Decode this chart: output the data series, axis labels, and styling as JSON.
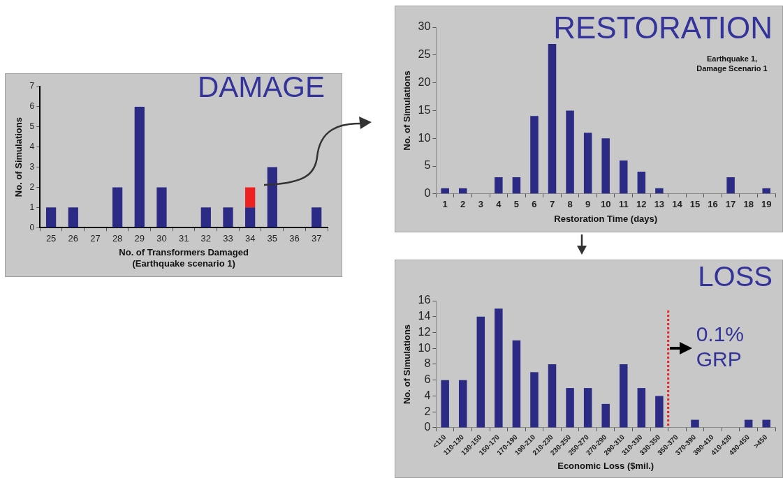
{
  "chart_data": [
    {
      "type": "bar",
      "title": "DAMAGE",
      "xlabel": "No. of Transformers Damaged\n(Earthquake scenario 1)",
      "ylabel": "No. of Simulations",
      "categories": [
        "25",
        "26",
        "27",
        "28",
        "29",
        "30",
        "31",
        "32",
        "33",
        "34",
        "35",
        "36",
        "37"
      ],
      "stacked": true,
      "series": [
        {
          "color": "#2b2b85",
          "values": [
            1,
            1,
            0,
            2,
            6,
            2,
            0,
            1,
            1,
            1,
            3,
            0,
            1
          ]
        },
        {
          "color": "#ee2020",
          "values": [
            null,
            null,
            null,
            null,
            null,
            null,
            null,
            null,
            null,
            1,
            null,
            null,
            null
          ]
        }
      ],
      "ylim": [
        0,
        7
      ],
      "yticks": [
        0,
        1,
        2,
        3,
        4,
        5,
        6,
        7
      ],
      "grid": false,
      "legend": false
    },
    {
      "type": "bar",
      "title": "RESTORATION",
      "xlabel": "Restoration Time (days)",
      "ylabel": "No. of Simulations",
      "annotations": [
        "Earthquake 1,\nDamage Scenario 1"
      ],
      "categories": [
        "1",
        "2",
        "3",
        "4",
        "5",
        "6",
        "7",
        "8",
        "9",
        "10",
        "11",
        "12",
        "13",
        "14",
        "15",
        "16",
        "17",
        "18",
        "19"
      ],
      "series": [
        {
          "color": "#2b2b85",
          "values": [
            1,
            1,
            0,
            3,
            3,
            14,
            27,
            15,
            11,
            10,
            6,
            4,
            1,
            0,
            0,
            0,
            3,
            0,
            1
          ]
        }
      ],
      "ylim": [
        0,
        30
      ],
      "yticks": [
        0,
        5,
        10,
        15,
        20,
        25,
        30
      ],
      "grid": false,
      "legend": false
    },
    {
      "type": "bar",
      "title": "LOSS",
      "xlabel": "Economic Loss ($mil.)",
      "ylabel": "No. of Simulations",
      "categories": [
        "<110",
        "110-130",
        "130-150",
        "150-170",
        "170-190",
        "190-210",
        "210-230",
        "230-250",
        "250-270",
        "270-290",
        "290-310",
        "310-330",
        "330-350",
        "350-370",
        "370-390",
        "390-410",
        "410-430",
        "430-450",
        ">450"
      ],
      "series": [
        {
          "color": "#2b2b85",
          "values": [
            6,
            6,
            14,
            15,
            11,
            7,
            8,
            5,
            5,
            3,
            8,
            5,
            4,
            0,
            1,
            0,
            0,
            1,
            1
          ]
        }
      ],
      "ylim": [
        0,
        16
      ],
      "yticks": [
        0,
        2,
        4,
        6,
        8,
        10,
        12,
        14,
        16
      ],
      "grid": false,
      "legend": false,
      "ref_lines": [
        {
          "axis": "x",
          "value": "350-370",
          "label": "0.1% GRP",
          "color": "#ee2020",
          "line_style": "dotted"
        }
      ]
    }
  ]
}
